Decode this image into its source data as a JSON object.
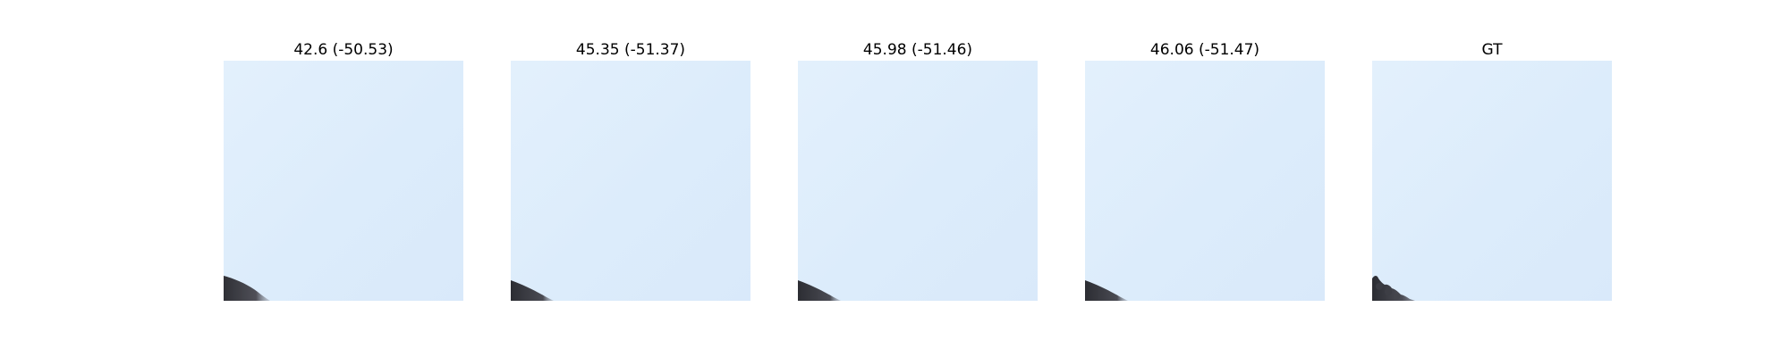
{
  "figure": {
    "panels": [
      {
        "title": "42.6 (-50.53)",
        "sky_color": "#dfeefb"
      },
      {
        "title": "45.35 (-51.37)",
        "sky_color": "#deedfb"
      },
      {
        "title": "45.98 (-51.46)",
        "sky_color": "#ddedfb"
      },
      {
        "title": "46.06 (-51.47)",
        "sky_color": "#ddecfb"
      },
      {
        "title": "GT",
        "sky_color": "#dcebfa"
      }
    ]
  }
}
